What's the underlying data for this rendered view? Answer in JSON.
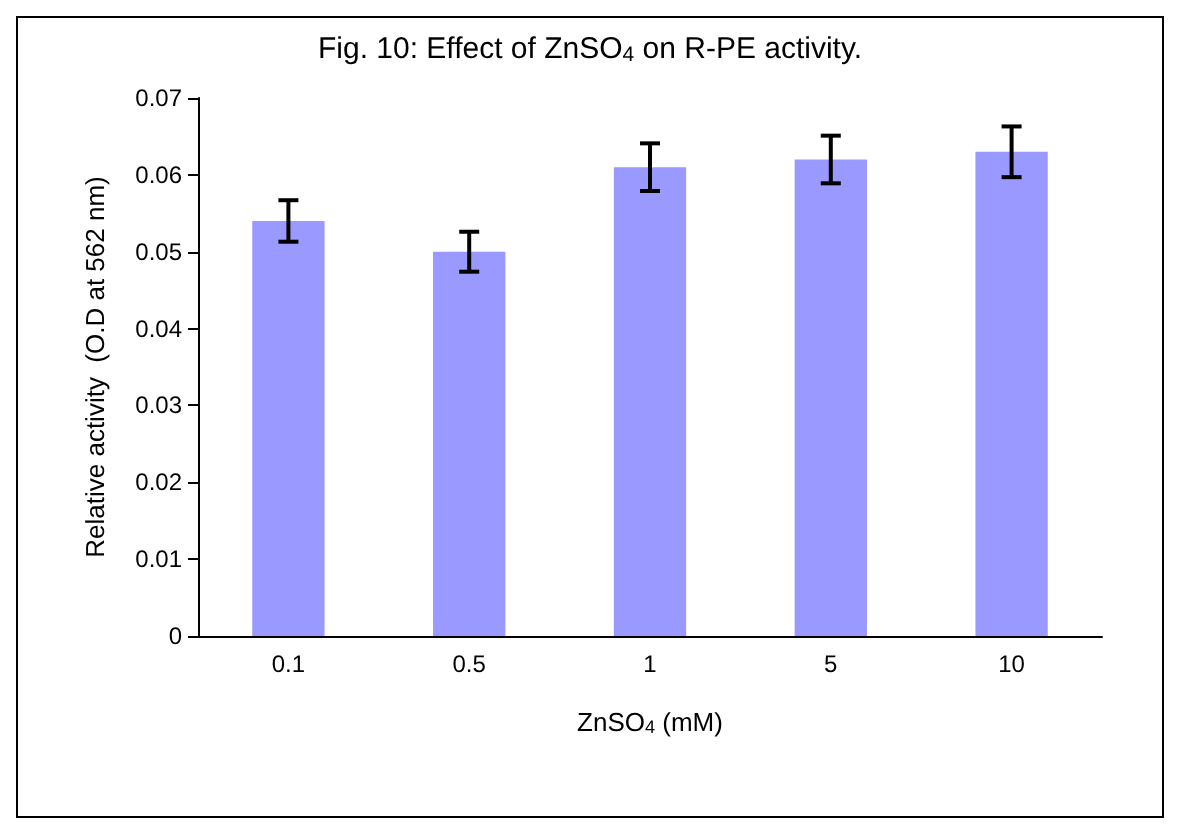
{
  "chart_data": {
    "type": "bar",
    "title": "Fig. 10: Effect of ZnSO$_{4}$ on R-PE activity.",
    "xlabel": "ZnSO$_{4}$ (mM)",
    "ylabel": "Relative activity  (O.D at 562 nm)",
    "categories": [
      "0.1",
      "0.5",
      "1",
      "5",
      "10"
    ],
    "values": [
      0.054,
      0.05,
      0.061,
      0.062,
      0.063
    ],
    "errors": [
      0.0027,
      0.0026,
      0.0031,
      0.0031,
      0.0033
    ],
    "color": "#9999ff",
    "ylim": [
      0,
      0.07
    ],
    "yticks": [
      0,
      0.01,
      0.02,
      0.03,
      0.04,
      0.05,
      0.06,
      0.07
    ]
  }
}
